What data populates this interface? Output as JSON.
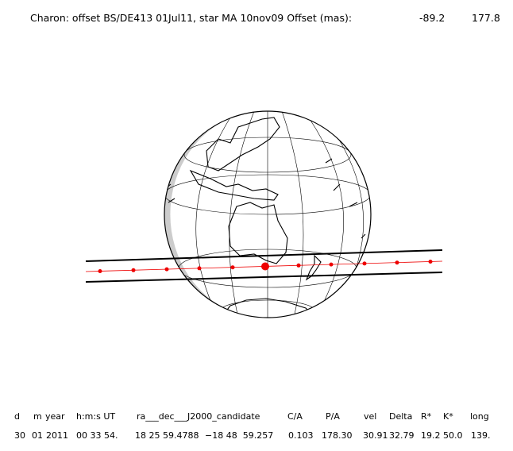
{
  "header": {
    "title": "Charon: offset BS/DE413 01Jul11, star MA 10nov09  Offset (mas):",
    "offset": [
      "-89.2",
      "177.8"
    ]
  },
  "table": {
    "columns": [
      "d",
      "m",
      "year",
      "h:m:s UT",
      "ra___dec___J2000_candidate",
      "C/A",
      "P/A",
      "vel",
      "Delta",
      "R*",
      "K*",
      "long"
    ],
    "values": [
      "30",
      "01",
      "2011",
      "00 33 54.",
      "18 25 59.4788",
      "−18 48  59.257",
      "0.103",
      "178.30",
      "30.91",
      "32.79",
      "19.2",
      "50.0",
      "139."
    ]
  }
}
